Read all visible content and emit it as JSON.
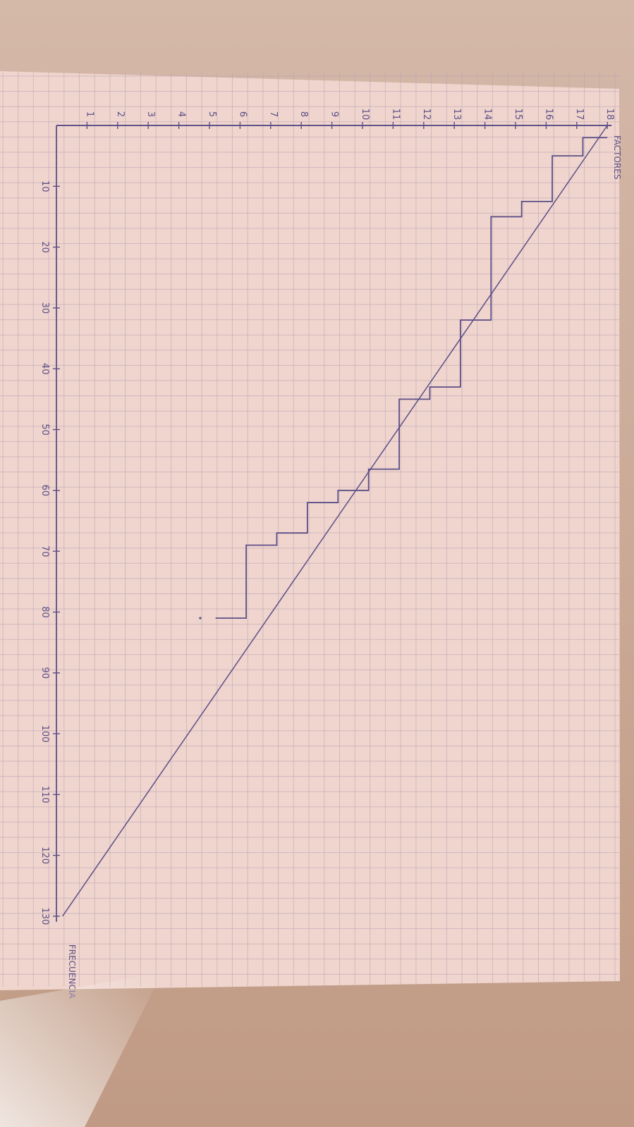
{
  "chart_data": {
    "type": "line",
    "orientation_note": "",
    "xlabel": "FACTORES",
    "ylabel": "FRECUENCIA",
    "x_ticks": [
      "1",
      "2",
      "3",
      "4",
      "5",
      "6",
      "7",
      "8",
      "9",
      "10",
      "11",
      "12",
      "13",
      "14",
      "15",
      "16",
      "17",
      "18"
    ],
    "y_ticks": [
      "10",
      "20",
      "30",
      "40",
      "50",
      "60",
      "70",
      "80",
      "90",
      "100",
      "110",
      "120",
      "130"
    ],
    "xlim": [
      0,
      18
    ],
    "ylim": [
      0,
      130
    ],
    "grid": true,
    "series": [
      {
        "name": "",
        "style": "step",
        "points": [
          [
            18,
            2
          ],
          [
            17.2,
            2
          ],
          [
            17.2,
            5
          ],
          [
            16.2,
            5
          ],
          [
            16.2,
            12.5
          ],
          [
            15.2,
            12.5
          ],
          [
            15.2,
            15
          ],
          [
            14.2,
            15
          ],
          [
            14.2,
            32
          ],
          [
            13.2,
            32
          ],
          [
            13.2,
            43
          ],
          [
            12.2,
            43
          ],
          [
            12.2,
            45
          ],
          [
            11.2,
            45
          ],
          [
            11.2,
            56.5
          ],
          [
            10.2,
            56.5
          ],
          [
            10.2,
            60
          ],
          [
            9.2,
            60
          ],
          [
            9.2,
            62
          ],
          [
            8.2,
            62
          ],
          [
            8.2,
            67
          ],
          [
            7.2,
            67
          ],
          [
            7.2,
            69
          ],
          [
            6.2,
            69
          ],
          [
            6.2,
            81
          ],
          [
            5.2,
            81
          ]
        ]
      },
      {
        "name": "",
        "style": "line",
        "points": [
          [
            18,
            0
          ],
          [
            0.2,
            130
          ]
        ]
      }
    ],
    "colors": {
      "paper": "#efd5cd",
      "grid": "#b9a3b4",
      "ink": "#5d4f88",
      "table": "#c9a890"
    }
  }
}
